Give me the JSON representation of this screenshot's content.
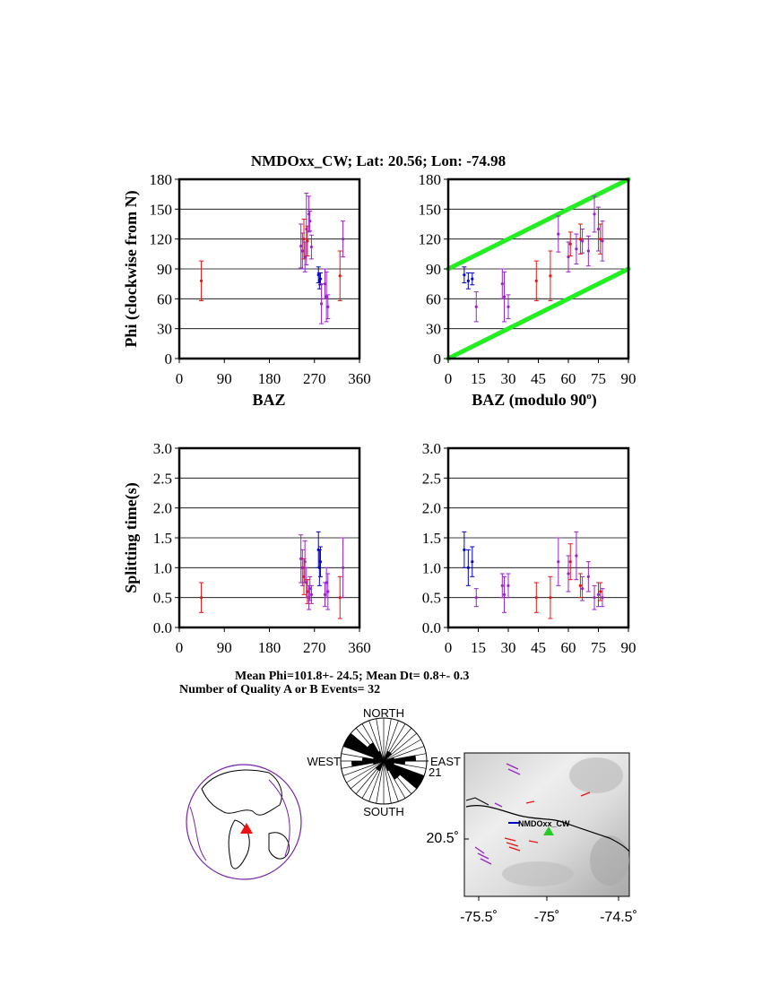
{
  "title": "NMDOxx_CW; Lat:  20.56;  Lon:  -74.98",
  "axes": {
    "phi_ylabel": "Phi (clockwise from N)",
    "dt_ylabel": "Splitting time(s)",
    "baz_xlabel": "BAZ",
    "baz90_xlabel": "BAZ (modulo 90",
    "baz90_xlabel_sup": "o",
    "baz90_xlabel_end": ")",
    "baz_ticks": [
      "0",
      "90",
      "180",
      "270",
      "360"
    ],
    "baz90_ticks": [
      "0",
      "15",
      "30",
      "45",
      "60",
      "75",
      "90"
    ],
    "phi_ticks": [
      "0",
      "30",
      "60",
      "90",
      "120",
      "150",
      "180"
    ],
    "dt_ticks": [
      "0.0",
      "0.5",
      "1.0",
      "1.5",
      "2.0",
      "2.5",
      "3.0"
    ]
  },
  "stats": {
    "line1": "Mean Phi=101.8+- 24.5; Mean Dt=  0.8+-  0.3",
    "line2": "Number of Quality A or B Events= 32"
  },
  "rose": {
    "north": "NORTH",
    "south": "SOUTH",
    "east": "EAST",
    "west": "WEST",
    "count_label": "21",
    "petals_deg": [
      0,
      10,
      20,
      30,
      40,
      50,
      60,
      70,
      80,
      90,
      100,
      110,
      120,
      130,
      140,
      150,
      160,
      170
    ],
    "petal_counts": [
      0,
      0,
      1,
      1,
      1,
      0,
      0,
      1,
      3,
      2,
      1,
      4,
      4,
      2,
      2,
      1,
      0,
      0
    ]
  },
  "map": {
    "station_label": "NMDOxx_CW",
    "lat_tick": "20.5˚",
    "lon_ticks": [
      "-75.5˚",
      "-75˚",
      "-74.5˚"
    ]
  },
  "colors": {
    "red": "#ee1111",
    "purple": "#9922cc",
    "blue": "#0000cc",
    "green": "#22ee22",
    "grid": "#000000"
  },
  "chart_data": [
    {
      "type": "scatter",
      "name": "phi_vs_baz",
      "xlabel": "BAZ",
      "ylabel": "Phi (clockwise from N)",
      "xlim": [
        0,
        360
      ],
      "ylim": [
        0,
        180
      ],
      "x_ticks": [
        0,
        90,
        180,
        270,
        360
      ],
      "y_ticks": [
        0,
        30,
        60,
        90,
        120,
        150,
        180
      ],
      "grid": "horizontal",
      "points": [
        {
          "x": 44,
          "y": 78,
          "err": 20,
          "color": "red"
        },
        {
          "x": 243,
          "y": 113,
          "err": 22,
          "color": "purple"
        },
        {
          "x": 246,
          "y": 108,
          "err": 18,
          "color": "purple"
        },
        {
          "x": 249,
          "y": 120,
          "err": 20,
          "color": "red"
        },
        {
          "x": 251,
          "y": 102,
          "err": 15,
          "color": "purple"
        },
        {
          "x": 254,
          "y": 130,
          "err": 36,
          "color": "purple"
        },
        {
          "x": 256,
          "y": 118,
          "err": 15,
          "color": "red"
        },
        {
          "x": 259,
          "y": 145,
          "err": 18,
          "color": "purple"
        },
        {
          "x": 261,
          "y": 138,
          "err": 10,
          "color": "purple"
        },
        {
          "x": 264,
          "y": 112,
          "err": 12,
          "color": "purple"
        },
        {
          "x": 278,
          "y": 84,
          "err": 8,
          "color": "blue"
        },
        {
          "x": 280,
          "y": 78,
          "err": 8,
          "color": "blue"
        },
        {
          "x": 282,
          "y": 80,
          "err": 6,
          "color": "blue"
        },
        {
          "x": 284,
          "y": 55,
          "err": 20,
          "color": "purple"
        },
        {
          "x": 291,
          "y": 75,
          "err": 15,
          "color": "purple"
        },
        {
          "x": 294,
          "y": 62,
          "err": 25,
          "color": "purple"
        },
        {
          "x": 297,
          "y": 52,
          "err": 12,
          "color": "purple"
        },
        {
          "x": 321,
          "y": 83,
          "err": 25,
          "color": "red"
        },
        {
          "x": 327,
          "y": 120,
          "err": 18,
          "color": "purple"
        }
      ]
    },
    {
      "type": "scatter",
      "name": "phi_vs_baz_mod90",
      "xlabel": "BAZ (modulo 90o)",
      "xlim": [
        0,
        90
      ],
      "ylim": [
        0,
        180
      ],
      "x_ticks": [
        0,
        15,
        30,
        45,
        60,
        75,
        90
      ],
      "y_ticks": [
        0,
        30,
        60,
        90,
        120,
        150,
        180
      ],
      "grid": "horizontal",
      "reference_lines": [
        {
          "x": [
            0,
            90
          ],
          "y": [
            0,
            90
          ],
          "color": "green"
        },
        {
          "x": [
            0,
            90
          ],
          "y": [
            90,
            180
          ],
          "color": "green"
        }
      ],
      "points": [
        {
          "x": 8,
          "y": 84,
          "err": 8,
          "color": "blue"
        },
        {
          "x": 10,
          "y": 78,
          "err": 8,
          "color": "blue"
        },
        {
          "x": 12,
          "y": 80,
          "err": 6,
          "color": "blue"
        },
        {
          "x": 14,
          "y": 52,
          "err": 15,
          "color": "purple"
        },
        {
          "x": 27,
          "y": 75,
          "err": 15,
          "color": "purple"
        },
        {
          "x": 28,
          "y": 62,
          "err": 25,
          "color": "purple"
        },
        {
          "x": 30,
          "y": 52,
          "err": 12,
          "color": "purple"
        },
        {
          "x": 44,
          "y": 78,
          "err": 20,
          "color": "red"
        },
        {
          "x": 51,
          "y": 83,
          "err": 25,
          "color": "red"
        },
        {
          "x": 55,
          "y": 125,
          "err": 18,
          "color": "purple"
        },
        {
          "x": 60,
          "y": 102,
          "err": 15,
          "color": "purple"
        },
        {
          "x": 61,
          "y": 115,
          "err": 12,
          "color": "red"
        },
        {
          "x": 64,
          "y": 110,
          "err": 15,
          "color": "purple"
        },
        {
          "x": 66,
          "y": 120,
          "err": 15,
          "color": "red"
        },
        {
          "x": 67,
          "y": 118,
          "err": 12,
          "color": "purple"
        },
        {
          "x": 70,
          "y": 108,
          "err": 15,
          "color": "purple"
        },
        {
          "x": 73,
          "y": 145,
          "err": 18,
          "color": "purple"
        },
        {
          "x": 75,
          "y": 130,
          "err": 22,
          "color": "purple"
        },
        {
          "x": 76,
          "y": 120,
          "err": 15,
          "color": "red"
        },
        {
          "x": 77,
          "y": 118,
          "err": 20,
          "color": "purple"
        }
      ]
    },
    {
      "type": "scatter",
      "name": "dt_vs_baz",
      "ylabel": "Splitting time(s)",
      "xlim": [
        0,
        360
      ],
      "ylim": [
        0,
        3
      ],
      "x_ticks": [
        0,
        90,
        180,
        270,
        360
      ],
      "y_ticks": [
        0.0,
        0.5,
        1.0,
        1.5,
        2.0,
        2.5,
        3.0
      ],
      "grid": "horizontal",
      "points": [
        {
          "x": 44,
          "y": 0.5,
          "err": 0.25,
          "color": "red"
        },
        {
          "x": 243,
          "y": 1.15,
          "err": 0.4,
          "color": "purple"
        },
        {
          "x": 246,
          "y": 1.0,
          "err": 0.3,
          "color": "purple"
        },
        {
          "x": 249,
          "y": 0.85,
          "err": 0.3,
          "color": "red"
        },
        {
          "x": 251,
          "y": 1.1,
          "err": 0.35,
          "color": "purple"
        },
        {
          "x": 254,
          "y": 0.75,
          "err": 0.25,
          "color": "purple"
        },
        {
          "x": 256,
          "y": 0.6,
          "err": 0.2,
          "color": "red"
        },
        {
          "x": 259,
          "y": 0.5,
          "err": 0.2,
          "color": "purple"
        },
        {
          "x": 261,
          "y": 0.65,
          "err": 0.2,
          "color": "purple"
        },
        {
          "x": 264,
          "y": 0.55,
          "err": 0.15,
          "color": "purple"
        },
        {
          "x": 278,
          "y": 1.3,
          "err": 0.3,
          "color": "blue"
        },
        {
          "x": 280,
          "y": 1.0,
          "err": 0.3,
          "color": "blue"
        },
        {
          "x": 282,
          "y": 1.1,
          "err": 0.25,
          "color": "blue"
        },
        {
          "x": 291,
          "y": 0.55,
          "err": 0.2,
          "color": "purple"
        },
        {
          "x": 294,
          "y": 0.75,
          "err": 0.25,
          "color": "purple"
        },
        {
          "x": 297,
          "y": 0.6,
          "err": 0.3,
          "color": "purple"
        },
        {
          "x": 321,
          "y": 0.5,
          "err": 0.35,
          "color": "red"
        },
        {
          "x": 327,
          "y": 1.0,
          "err": 0.5,
          "color": "purple"
        }
      ]
    },
    {
      "type": "scatter",
      "name": "dt_vs_baz_mod90",
      "xlim": [
        0,
        90
      ],
      "ylim": [
        0,
        3
      ],
      "x_ticks": [
        0,
        15,
        30,
        45,
        60,
        75,
        90
      ],
      "y_ticks": [
        0.0,
        0.5,
        1.0,
        1.5,
        2.0,
        2.5,
        3.0
      ],
      "grid": "horizontal",
      "points": [
        {
          "x": 8,
          "y": 1.3,
          "err": 0.3,
          "color": "blue"
        },
        {
          "x": 10,
          "y": 1.0,
          "err": 0.3,
          "color": "blue"
        },
        {
          "x": 12,
          "y": 1.1,
          "err": 0.25,
          "color": "blue"
        },
        {
          "x": 14,
          "y": 0.5,
          "err": 0.15,
          "color": "purple"
        },
        {
          "x": 27,
          "y": 0.7,
          "err": 0.2,
          "color": "purple"
        },
        {
          "x": 28,
          "y": 0.55,
          "err": 0.3,
          "color": "purple"
        },
        {
          "x": 30,
          "y": 0.7,
          "err": 0.2,
          "color": "purple"
        },
        {
          "x": 44,
          "y": 0.5,
          "err": 0.25,
          "color": "red"
        },
        {
          "x": 51,
          "y": 0.5,
          "err": 0.35,
          "color": "red"
        },
        {
          "x": 55,
          "y": 1.1,
          "err": 0.4,
          "color": "purple"
        },
        {
          "x": 60,
          "y": 0.9,
          "err": 0.3,
          "color": "purple"
        },
        {
          "x": 61,
          "y": 1.1,
          "err": 0.3,
          "color": "red"
        },
        {
          "x": 64,
          "y": 1.2,
          "err": 0.4,
          "color": "purple"
        },
        {
          "x": 66,
          "y": 0.7,
          "err": 0.2,
          "color": "red"
        },
        {
          "x": 67,
          "y": 0.65,
          "err": 0.2,
          "color": "purple"
        },
        {
          "x": 70,
          "y": 0.85,
          "err": 0.25,
          "color": "purple"
        },
        {
          "x": 73,
          "y": 0.5,
          "err": 0.2,
          "color": "purple"
        },
        {
          "x": 75,
          "y": 0.55,
          "err": 0.2,
          "color": "purple"
        },
        {
          "x": 76,
          "y": 0.6,
          "err": 0.15,
          "color": "red"
        },
        {
          "x": 77,
          "y": 0.5,
          "err": 0.15,
          "color": "purple"
        }
      ]
    }
  ]
}
